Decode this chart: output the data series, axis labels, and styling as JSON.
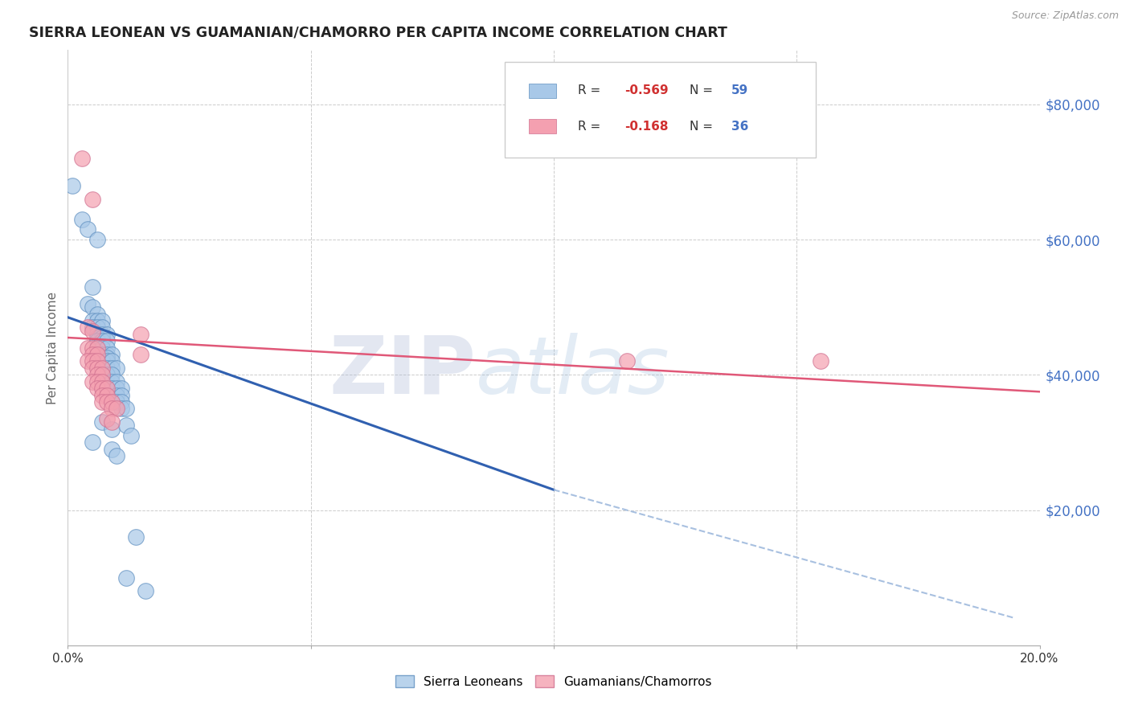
{
  "title": "SIERRA LEONEAN VS GUAMANIAN/CHAMORRO PER CAPITA INCOME CORRELATION CHART",
  "source": "Source: ZipAtlas.com",
  "ylabel": "Per Capita Income",
  "xlim": [
    0.0,
    0.2
  ],
  "ylim": [
    0,
    88000
  ],
  "yticks": [
    0,
    20000,
    40000,
    60000,
    80000
  ],
  "xticks": [
    0.0,
    0.05,
    0.1,
    0.15,
    0.2
  ],
  "xtick_labels": [
    "0.0%",
    "",
    "",
    "",
    "20.0%"
  ],
  "ytick_labels_right": [
    "",
    "$20,000",
    "$40,000",
    "$60,000",
    "$80,000"
  ],
  "legend_label1": "Sierra Leoneans",
  "legend_label2": "Guamanians/Chamorros",
  "blue_color": "#a8c8e8",
  "pink_color": "#f4a0b0",
  "blue_line_color": "#3060b0",
  "pink_line_color": "#e05878",
  "dashed_line_color": "#a8c0e0",
  "watermark": "ZIPatlas",
  "watermark_color": "#c8d8f0",
  "blue_dots": [
    [
      0.001,
      68000
    ],
    [
      0.003,
      63000
    ],
    [
      0.004,
      61500
    ],
    [
      0.005,
      53000
    ],
    [
      0.004,
      50500
    ],
    [
      0.005,
      50000
    ],
    [
      0.006,
      49000
    ],
    [
      0.005,
      48000
    ],
    [
      0.006,
      48000
    ],
    [
      0.007,
      48000
    ],
    [
      0.005,
      47000
    ],
    [
      0.006,
      47000
    ],
    [
      0.007,
      47000
    ],
    [
      0.006,
      46000
    ],
    [
      0.007,
      46000
    ],
    [
      0.008,
      46000
    ],
    [
      0.006,
      45500
    ],
    [
      0.007,
      45500
    ],
    [
      0.006,
      45000
    ],
    [
      0.007,
      45000
    ],
    [
      0.008,
      45000
    ],
    [
      0.007,
      44000
    ],
    [
      0.008,
      44000
    ],
    [
      0.006,
      43000
    ],
    [
      0.007,
      43000
    ],
    [
      0.008,
      43000
    ],
    [
      0.009,
      43000
    ],
    [
      0.007,
      42500
    ],
    [
      0.008,
      42500
    ],
    [
      0.007,
      42000
    ],
    [
      0.008,
      42000
    ],
    [
      0.009,
      42000
    ],
    [
      0.008,
      41000
    ],
    [
      0.009,
      41000
    ],
    [
      0.01,
      41000
    ],
    [
      0.008,
      40000
    ],
    [
      0.009,
      40000
    ],
    [
      0.009,
      39000
    ],
    [
      0.01,
      39000
    ],
    [
      0.009,
      38000
    ],
    [
      0.01,
      38000
    ],
    [
      0.011,
      38000
    ],
    [
      0.01,
      37000
    ],
    [
      0.011,
      37000
    ],
    [
      0.01,
      36000
    ],
    [
      0.011,
      36000
    ],
    [
      0.011,
      35000
    ],
    [
      0.012,
      35000
    ],
    [
      0.007,
      33000
    ],
    [
      0.009,
      32000
    ],
    [
      0.012,
      32500
    ],
    [
      0.013,
      31000
    ],
    [
      0.005,
      30000
    ],
    [
      0.009,
      29000
    ],
    [
      0.01,
      28000
    ],
    [
      0.014,
      16000
    ],
    [
      0.012,
      10000
    ],
    [
      0.016,
      8000
    ],
    [
      0.006,
      60000
    ]
  ],
  "pink_dots": [
    [
      0.003,
      72000
    ],
    [
      0.005,
      66000
    ],
    [
      0.004,
      47000
    ],
    [
      0.005,
      46500
    ],
    [
      0.004,
      44000
    ],
    [
      0.005,
      44000
    ],
    [
      0.006,
      44000
    ],
    [
      0.005,
      43000
    ],
    [
      0.006,
      43000
    ],
    [
      0.004,
      42000
    ],
    [
      0.005,
      42000
    ],
    [
      0.006,
      42000
    ],
    [
      0.005,
      41000
    ],
    [
      0.006,
      41000
    ],
    [
      0.007,
      41000
    ],
    [
      0.006,
      40000
    ],
    [
      0.007,
      40000
    ],
    [
      0.005,
      39000
    ],
    [
      0.006,
      39000
    ],
    [
      0.007,
      39000
    ],
    [
      0.006,
      38000
    ],
    [
      0.007,
      38000
    ],
    [
      0.008,
      38000
    ],
    [
      0.007,
      37000
    ],
    [
      0.008,
      37000
    ],
    [
      0.007,
      36000
    ],
    [
      0.008,
      36000
    ],
    [
      0.009,
      36000
    ],
    [
      0.009,
      35000
    ],
    [
      0.01,
      35000
    ],
    [
      0.008,
      33500
    ],
    [
      0.009,
      33000
    ],
    [
      0.015,
      46000
    ],
    [
      0.015,
      43000
    ],
    [
      0.115,
      42000
    ],
    [
      0.155,
      42000
    ]
  ],
  "blue_line": {
    "x0": 0.0,
    "y0": 48500,
    "x1": 0.1,
    "y1": 23000
  },
  "pink_line": {
    "x0": 0.0,
    "y0": 45500,
    "x1": 0.2,
    "y1": 37500
  },
  "dashed_line": {
    "x0": 0.1,
    "y0": 23000,
    "x1": 0.195,
    "y1": 4000
  }
}
